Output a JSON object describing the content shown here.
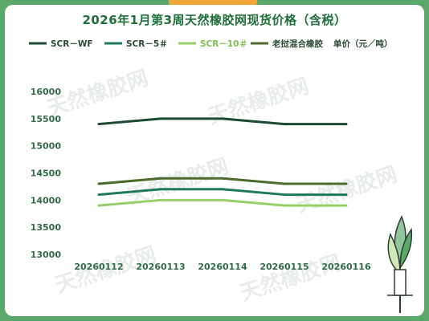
{
  "chart_data": {
    "type": "line",
    "title": "2026年1月第3周天然橡胶网现货价格（含税）",
    "unit_label": "单价（元／吨）",
    "categories": [
      "20260112",
      "20260113",
      "20260114",
      "20260115",
      "20260116"
    ],
    "ylim": [
      13000,
      16000
    ],
    "yticks": [
      13000,
      13500,
      14000,
      14500,
      15000,
      15500,
      16000
    ],
    "grid": false,
    "legend_position": "top",
    "series": [
      {
        "name": "SCR－WF",
        "color": "#1d4a32",
        "values": [
          15400,
          15500,
          15500,
          15400,
          15400
        ]
      },
      {
        "name": "SCR－5＃",
        "color": "#1f7a5c",
        "values": [
          14100,
          14200,
          14200,
          14100,
          14100
        ]
      },
      {
        "name": "SCR－10＃",
        "color": "#97cf6a",
        "values": [
          13900,
          14000,
          14000,
          13900,
          13900
        ]
      },
      {
        "name": "老挝混合橡胶",
        "color": "#4e6b2e",
        "values": [
          14300,
          14400,
          14400,
          14300,
          14300
        ]
      }
    ]
  },
  "watermark": "天然橡胶网"
}
